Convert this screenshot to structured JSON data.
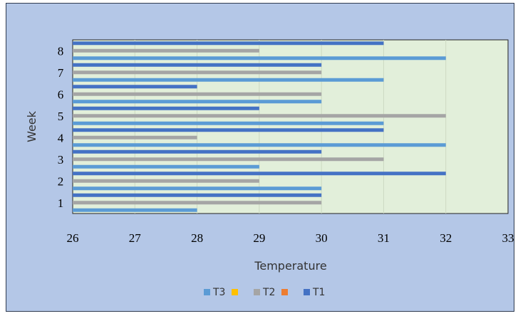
{
  "chart_data": {
    "type": "bar",
    "orientation": "horizontal",
    "title": "",
    "xlabel": "Temperature",
    "ylabel": "Week",
    "xlim": [
      26,
      33
    ],
    "xticks": [
      "26",
      "27",
      "28",
      "29",
      "30",
      "31",
      "32",
      "33"
    ],
    "categories": [
      "1",
      "2",
      "3",
      "4",
      "5",
      "6",
      "7",
      "8"
    ],
    "series": [
      {
        "name": "T1",
        "color": "#4472c4",
        "values": [
          30,
          32,
          30,
          31,
          29,
          28,
          30,
          31
        ]
      },
      {
        "name": "",
        "color": "#ed7d31",
        "values": [
          0,
          0,
          0,
          0,
          0,
          0,
          0,
          0
        ]
      },
      {
        "name": "T2",
        "color": "#a5a5a5",
        "values": [
          30,
          29,
          31,
          28,
          32,
          30,
          30,
          29
        ]
      },
      {
        "name": "",
        "color": "#ffc000",
        "values": [
          0,
          0,
          0,
          0,
          0,
          0,
          0,
          0
        ]
      },
      {
        "name": "T3",
        "color": "#5b9bd5",
        "values": [
          28,
          30,
          29,
          32,
          31,
          30,
          31,
          32
        ]
      }
    ],
    "legend": {
      "position": "bottom",
      "entries": [
        {
          "label": "T3",
          "color": "#5b9bd5"
        },
        {
          "label": "",
          "color": "#ffc000"
        },
        {
          "label": "T2",
          "color": "#a5a5a5"
        },
        {
          "label": "",
          "color": "#ed7d31"
        },
        {
          "label": "T1",
          "color": "#4472c4"
        }
      ]
    },
    "grid": true,
    "plot_background": "#e2efda",
    "chart_background": "#b4c7e7"
  }
}
